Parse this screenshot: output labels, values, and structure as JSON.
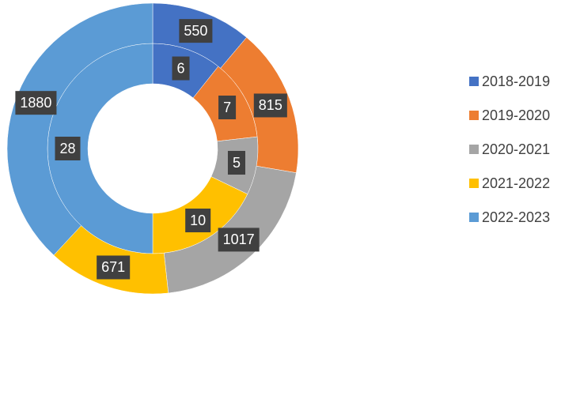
{
  "chart_data": {
    "type": "doughnut",
    "categories": [
      "2018-2019",
      "2019-2020",
      "2020-2021",
      "2021-2022",
      "2022-2023"
    ],
    "colors": [
      "#4472c4",
      "#ed7d31",
      "#a5a5a5",
      "#ffc000",
      "#5b9bd5"
    ],
    "series": [
      {
        "values": [
          6,
          7,
          5,
          10,
          28
        ]
      },
      {
        "values": [
          550,
          815,
          1017,
          671,
          1880
        ]
      }
    ],
    "legend": "right"
  }
}
